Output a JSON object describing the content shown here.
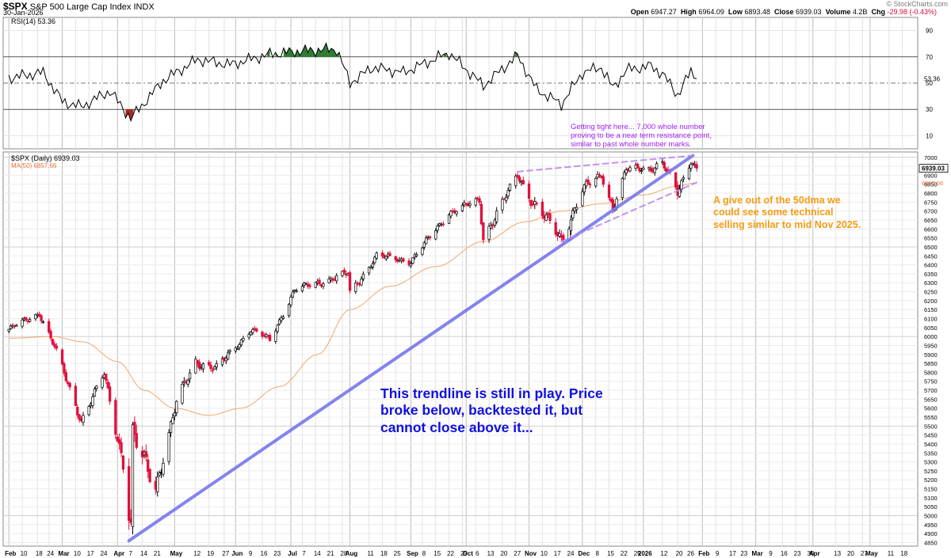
{
  "header": {
    "symbol": "$SPX",
    "name": "S&P 500 Large Cap Index",
    "exchange": "INDX",
    "date": "30-Jan-2026",
    "open_label": "Open",
    "open_value": "6947.27",
    "high_label": "High",
    "high_value": "6964.09",
    "low_label": "Low",
    "low_value": "6893.48",
    "close_label": "Close",
    "close_value": "6939.03",
    "volume_label": "Volume",
    "volume_value": "4.2B",
    "chg_label": "Chg",
    "chg_value": "-29.98 (-0.43%)",
    "brand": "© StockCharts.com"
  },
  "annotations": {
    "purple": [
      "Getting tight here... 7,000 whole number",
      "proving to be a near term resistance point,",
      "similar to past whole number marks."
    ],
    "orange": [
      "A give out of the 50dma we",
      "could see some technical",
      "selling similar to mid Nov 2025."
    ],
    "blue": [
      "This trendline is still in play. Price",
      "broke below, backtested it, but",
      "cannot close above it..."
    ]
  },
  "chart_data": [
    {
      "type": "line",
      "panel": "indicator",
      "legend": "RSI(14) 53.36",
      "current_value_label": "53.36",
      "ylim": [
        0,
        100
      ],
      "y_ticks": [
        10,
        30,
        50,
        70,
        90
      ],
      "reference_lines": [
        30,
        50,
        70
      ],
      "x": [
        "2025-02-03",
        "2025-02-21",
        "2025-03-03",
        "2025-03-13",
        "2025-03-28",
        "2025-04-08",
        "2025-04-25",
        "2025-05-13",
        "2025-05-30",
        "2025-06-20",
        "2025-07-03",
        "2025-07-25",
        "2025-08-01",
        "2025-08-13",
        "2025-08-29",
        "2025-09-22",
        "2025-10-10",
        "2025-10-28",
        "2025-11-07",
        "2025-11-20",
        "2025-12-01",
        "2025-12-11",
        "2025-12-17",
        "2025-12-24",
        "2026-01-06",
        "2026-01-12",
        "2026-01-20",
        "2026-01-27",
        "2026-01-30"
      ],
      "values": [
        54,
        58,
        36,
        32,
        44,
        23,
        52,
        68,
        64,
        72,
        74,
        76,
        50,
        62,
        58,
        73,
        48,
        71,
        45,
        34,
        58,
        62,
        46,
        60,
        63,
        57,
        41,
        59,
        53.36
      ]
    },
    {
      "type": "candlestick",
      "panel": "price",
      "legend": "$SPX (Daily) 6939.03",
      "ma_legend": "MA(50) 6857.66",
      "last_close_label": "6939.03",
      "ma_last_label": "6857.66",
      "ylim": [
        4830,
        7030
      ],
      "y_ticks": [
        4850,
        4900,
        4950,
        5000,
        5050,
        5100,
        5150,
        5200,
        5250,
        5300,
        5350,
        5400,
        5450,
        5500,
        5550,
        5600,
        5650,
        5700,
        5750,
        5800,
        5850,
        5900,
        5950,
        6000,
        6050,
        6100,
        6150,
        6200,
        6250,
        6300,
        6350,
        6400,
        6450,
        6500,
        6550,
        6600,
        6650,
        6700,
        6750,
        6800,
        6850,
        6900,
        6950,
        7000
      ],
      "x_range": [
        "2025-01-31",
        "2026-05-26"
      ],
      "x_tick_labels": [
        {
          "date": "2025-02-03",
          "label": "Feb",
          "major": true
        },
        {
          "date": "2025-02-10",
          "label": "10"
        },
        {
          "date": "2025-02-18",
          "label": "18"
        },
        {
          "date": "2025-02-24",
          "label": "24"
        },
        {
          "date": "2025-03-03",
          "label": "Mar",
          "major": true
        },
        {
          "date": "2025-03-10",
          "label": "10"
        },
        {
          "date": "2025-03-17",
          "label": "17"
        },
        {
          "date": "2025-03-24",
          "label": "24"
        },
        {
          "date": "2025-04-01",
          "label": "Apr",
          "major": true
        },
        {
          "date": "2025-04-07",
          "label": "7"
        },
        {
          "date": "2025-04-14",
          "label": "14"
        },
        {
          "date": "2025-04-21",
          "label": "21"
        },
        {
          "date": "2025-05-01",
          "label": "May",
          "major": true
        },
        {
          "date": "2025-05-12",
          "label": "12"
        },
        {
          "date": "2025-05-19",
          "label": "19"
        },
        {
          "date": "2025-05-27",
          "label": "27"
        },
        {
          "date": "2025-06-02",
          "label": "Jun",
          "major": true
        },
        {
          "date": "2025-06-09",
          "label": "9"
        },
        {
          "date": "2025-06-16",
          "label": "16"
        },
        {
          "date": "2025-06-23",
          "label": "23"
        },
        {
          "date": "2025-07-01",
          "label": "Jul",
          "major": true
        },
        {
          "date": "2025-07-07",
          "label": "7"
        },
        {
          "date": "2025-07-14",
          "label": "14"
        },
        {
          "date": "2025-07-21",
          "label": "21"
        },
        {
          "date": "2025-07-28",
          "label": "28"
        },
        {
          "date": "2025-08-01",
          "label": "Aug",
          "major": true
        },
        {
          "date": "2025-08-11",
          "label": "11"
        },
        {
          "date": "2025-08-18",
          "label": "18"
        },
        {
          "date": "2025-08-25",
          "label": "25"
        },
        {
          "date": "2025-09-02",
          "label": "Sep",
          "major": true
        },
        {
          "date": "2025-09-08",
          "label": "8"
        },
        {
          "date": "2025-09-15",
          "label": "15"
        },
        {
          "date": "2025-09-22",
          "label": "22"
        },
        {
          "date": "2025-09-29",
          "label": "29"
        },
        {
          "date": "2025-10-01",
          "label": "Oct",
          "major": true
        },
        {
          "date": "2025-10-06",
          "label": "6"
        },
        {
          "date": "2025-10-13",
          "label": "13"
        },
        {
          "date": "2025-10-20",
          "label": "20"
        },
        {
          "date": "2025-10-27",
          "label": "27"
        },
        {
          "date": "2025-11-03",
          "label": "Nov",
          "major": true
        },
        {
          "date": "2025-11-10",
          "label": "10"
        },
        {
          "date": "2025-11-17",
          "label": "17"
        },
        {
          "date": "2025-11-24",
          "label": "24"
        },
        {
          "date": "2025-12-01",
          "label": "Dec",
          "major": true
        },
        {
          "date": "2025-12-08",
          "label": "8"
        },
        {
          "date": "2025-12-15",
          "label": "15"
        },
        {
          "date": "2025-12-22",
          "label": "22"
        },
        {
          "date": "2025-12-29",
          "label": "29"
        },
        {
          "date": "2026-01-02",
          "label": "2026",
          "major": true
        },
        {
          "date": "2026-01-12",
          "label": "12"
        },
        {
          "date": "2026-01-20",
          "label": "20"
        },
        {
          "date": "2026-01-26",
          "label": "26"
        },
        {
          "date": "2026-02-02",
          "label": "Feb",
          "major": true
        },
        {
          "date": "2026-02-09",
          "label": "9"
        },
        {
          "date": "2026-02-17",
          "label": "17"
        },
        {
          "date": "2026-02-23",
          "label": "23"
        },
        {
          "date": "2026-03-02",
          "label": "Mar",
          "major": true
        },
        {
          "date": "2026-03-09",
          "label": "9"
        },
        {
          "date": "2026-03-16",
          "label": "16"
        },
        {
          "date": "2026-03-23",
          "label": "23"
        },
        {
          "date": "2026-03-30",
          "label": "30"
        },
        {
          "date": "2026-04-01",
          "label": "Apr",
          "major": true
        },
        {
          "date": "2026-04-13",
          "label": "13"
        },
        {
          "date": "2026-04-20",
          "label": "20"
        },
        {
          "date": "2026-04-27",
          "label": "27"
        },
        {
          "date": "2026-05-01",
          "label": "May",
          "major": true
        },
        {
          "date": "2026-05-11",
          "label": "11"
        },
        {
          "date": "2026-05-18",
          "label": "18"
        }
      ],
      "anchors": [
        [
          "2025-02-03",
          6040,
          8
        ],
        [
          "2025-02-19",
          6130,
          10
        ],
        [
          "2025-02-27",
          5940,
          12
        ],
        [
          "2025-03-13",
          5530,
          14
        ],
        [
          "2025-03-25",
          5790,
          12
        ],
        [
          "2025-04-04",
          5300,
          30
        ],
        [
          "2025-04-08",
          4950,
          45
        ],
        [
          "2025-04-09",
          5440,
          40
        ],
        [
          "2025-04-21",
          5160,
          25
        ],
        [
          "2025-05-02",
          5630,
          18
        ],
        [
          "2025-05-12",
          5860,
          15
        ],
        [
          "2025-05-23",
          5820,
          14
        ],
        [
          "2025-06-10",
          6040,
          10
        ],
        [
          "2025-06-20",
          5980,
          10
        ],
        [
          "2025-07-03",
          6260,
          10
        ],
        [
          "2025-07-31",
          6350,
          12
        ],
        [
          "2025-08-01",
          6240,
          12
        ],
        [
          "2025-08-15",
          6450,
          10
        ],
        [
          "2025-09-02",
          6420,
          10
        ],
        [
          "2025-09-22",
          6690,
          10
        ],
        [
          "2025-10-08",
          6760,
          12
        ],
        [
          "2025-10-10",
          6550,
          18
        ],
        [
          "2025-10-28",
          6900,
          12
        ],
        [
          "2025-11-04",
          6770,
          18
        ],
        [
          "2025-11-20",
          6540,
          22
        ],
        [
          "2025-12-01",
          6820,
          16
        ],
        [
          "2025-12-11",
          6900,
          12
        ],
        [
          "2025-12-17",
          6720,
          15
        ],
        [
          "2025-12-24",
          6930,
          10
        ],
        [
          "2026-01-06",
          6940,
          12
        ],
        [
          "2026-01-12",
          6970,
          12
        ],
        [
          "2026-01-20",
          6800,
          18
        ],
        [
          "2026-01-27",
          6985,
          12
        ],
        [
          "2026-01-30",
          6939.03,
          15
        ]
      ],
      "ma50": [
        [
          "2025-02-03",
          5990
        ],
        [
          "2025-02-26",
          6000
        ],
        [
          "2025-03-14",
          5970
        ],
        [
          "2025-04-01",
          5860
        ],
        [
          "2025-04-15",
          5700
        ],
        [
          "2025-05-01",
          5600
        ],
        [
          "2025-05-19",
          5560
        ],
        [
          "2025-06-05",
          5600
        ],
        [
          "2025-06-25",
          5720
        ],
        [
          "2025-07-15",
          5900
        ],
        [
          "2025-08-01",
          6150
        ],
        [
          "2025-08-22",
          6280
        ],
        [
          "2025-09-15",
          6390
        ],
        [
          "2025-10-10",
          6530
        ],
        [
          "2025-11-01",
          6640
        ],
        [
          "2025-11-20",
          6700
        ],
        [
          "2025-12-10",
          6740
        ],
        [
          "2026-01-02",
          6790
        ],
        [
          "2026-01-20",
          6840
        ],
        [
          "2026-01-30",
          6857.66
        ]
      ],
      "trendlines": [
        {
          "name": "main-trendline",
          "color": "#7777ee",
          "from": [
            "2025-04-07",
            4860
          ],
          "to": [
            "2026-01-28",
            7010
          ]
        },
        {
          "name": "upper-channel",
          "color": "#bb88ee",
          "dashed": true,
          "from": [
            "2025-10-28",
            6920
          ],
          "to": [
            "2026-01-28",
            7010
          ]
        },
        {
          "name": "lower-channel",
          "color": "#bb88ee",
          "dashed": true,
          "from": [
            "2025-11-20",
            6530
          ],
          "to": [
            "2026-01-30",
            6860
          ]
        }
      ],
      "colors": {
        "up": "#ffffff",
        "up_outline": "#000000",
        "down": "#e0103a",
        "down_dark": "#000000",
        "ma": "#f5a66b",
        "rsi_fill": "#2e7d32",
        "rsi_fill_low": "#a52a2a"
      }
    }
  ]
}
